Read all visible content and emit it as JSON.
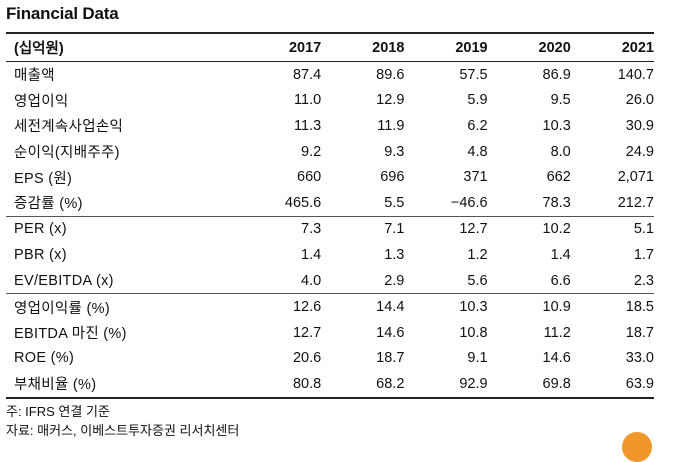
{
  "title": "Financial Data",
  "table": {
    "unit_header": "(십억원)",
    "years": [
      "2017",
      "2018",
      "2019",
      "2020",
      "2021"
    ],
    "rows": [
      {
        "label": "매출액",
        "values": [
          "87.4",
          "89.6",
          "57.5",
          "86.9",
          "140.7"
        ]
      },
      {
        "label": "영업이익",
        "values": [
          "11.0",
          "12.9",
          "5.9",
          "9.5",
          "26.0"
        ]
      },
      {
        "label": "세전계속사업손익",
        "values": [
          "11.3",
          "11.9",
          "6.2",
          "10.3",
          "30.9"
        ]
      },
      {
        "label": "순이익(지배주주)",
        "values": [
          "9.2",
          "9.3",
          "4.8",
          "8.0",
          "24.9"
        ]
      },
      {
        "label": "EPS (원)",
        "values": [
          "660",
          "696",
          "371",
          "662",
          "2,071"
        ]
      },
      {
        "label": "증감률 (%)",
        "values": [
          "465.6",
          "5.5",
          "−46.6",
          "78.3",
          "212.7"
        ]
      },
      {
        "label": "PER (x)",
        "values": [
          "7.3",
          "7.1",
          "12.7",
          "10.2",
          "5.1"
        ]
      },
      {
        "label": "PBR (x)",
        "values": [
          "1.4",
          "1.3",
          "1.2",
          "1.4",
          "1.7"
        ]
      },
      {
        "label": "EV/EBITDA (x)",
        "values": [
          "4.0",
          "2.9",
          "5.6",
          "6.6",
          "2.3"
        ]
      },
      {
        "label": "영업이익률 (%)",
        "values": [
          "12.6",
          "14.4",
          "10.3",
          "10.9",
          "18.5"
        ]
      },
      {
        "label": "EBITDA 마진 (%)",
        "values": [
          "12.7",
          "14.6",
          "10.8",
          "11.2",
          "18.7"
        ]
      },
      {
        "label": "ROE (%)",
        "values": [
          "20.6",
          "18.7",
          "9.1",
          "14.6",
          "33.0"
        ]
      },
      {
        "label": "부채비율 (%)",
        "values": [
          "80.8",
          "68.2",
          "92.9",
          "69.8",
          "63.9"
        ]
      }
    ]
  },
  "notes": {
    "basis": "주: IFRS 연결 기준",
    "source": "자료: 매커스, 이베스트투자증권 리서치센터"
  }
}
